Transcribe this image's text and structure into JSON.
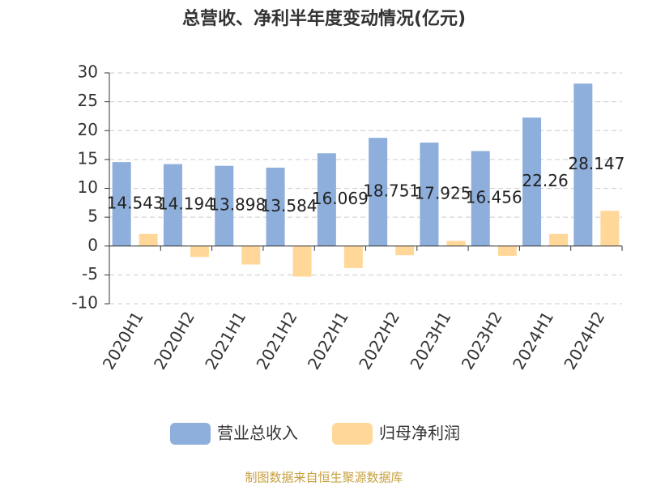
{
  "chart_data": {
    "type": "bar",
    "title": "总营收、净利半年度变动情况(亿元)",
    "categories": [
      "2020H1",
      "2020H2",
      "2021H1",
      "2021H2",
      "2022H1",
      "2022H2",
      "2023H1",
      "2023H2",
      "2024H1",
      "2024H2"
    ],
    "series": [
      {
        "name": "营业总收入",
        "color": "#8eaedb",
        "values": [
          14.543,
          14.194,
          13.898,
          13.584,
          16.069,
          18.751,
          17.925,
          16.456,
          22.26,
          28.147
        ],
        "show_labels": true
      },
      {
        "name": "归母净利润",
        "color": "#ffd899",
        "values": [
          2.1,
          -1.9,
          -3.2,
          -5.3,
          -3.8,
          -1.6,
          0.9,
          -1.7,
          2.1,
          6.1
        ],
        "show_labels": false
      }
    ],
    "ylim": [
      -10,
      30
    ],
    "yticks": [
      -10,
      -5,
      0,
      5,
      10,
      15,
      20,
      25,
      30
    ],
    "grid": true,
    "legend": "bottom",
    "source": "制图数据来自恒生聚源数据库"
  }
}
